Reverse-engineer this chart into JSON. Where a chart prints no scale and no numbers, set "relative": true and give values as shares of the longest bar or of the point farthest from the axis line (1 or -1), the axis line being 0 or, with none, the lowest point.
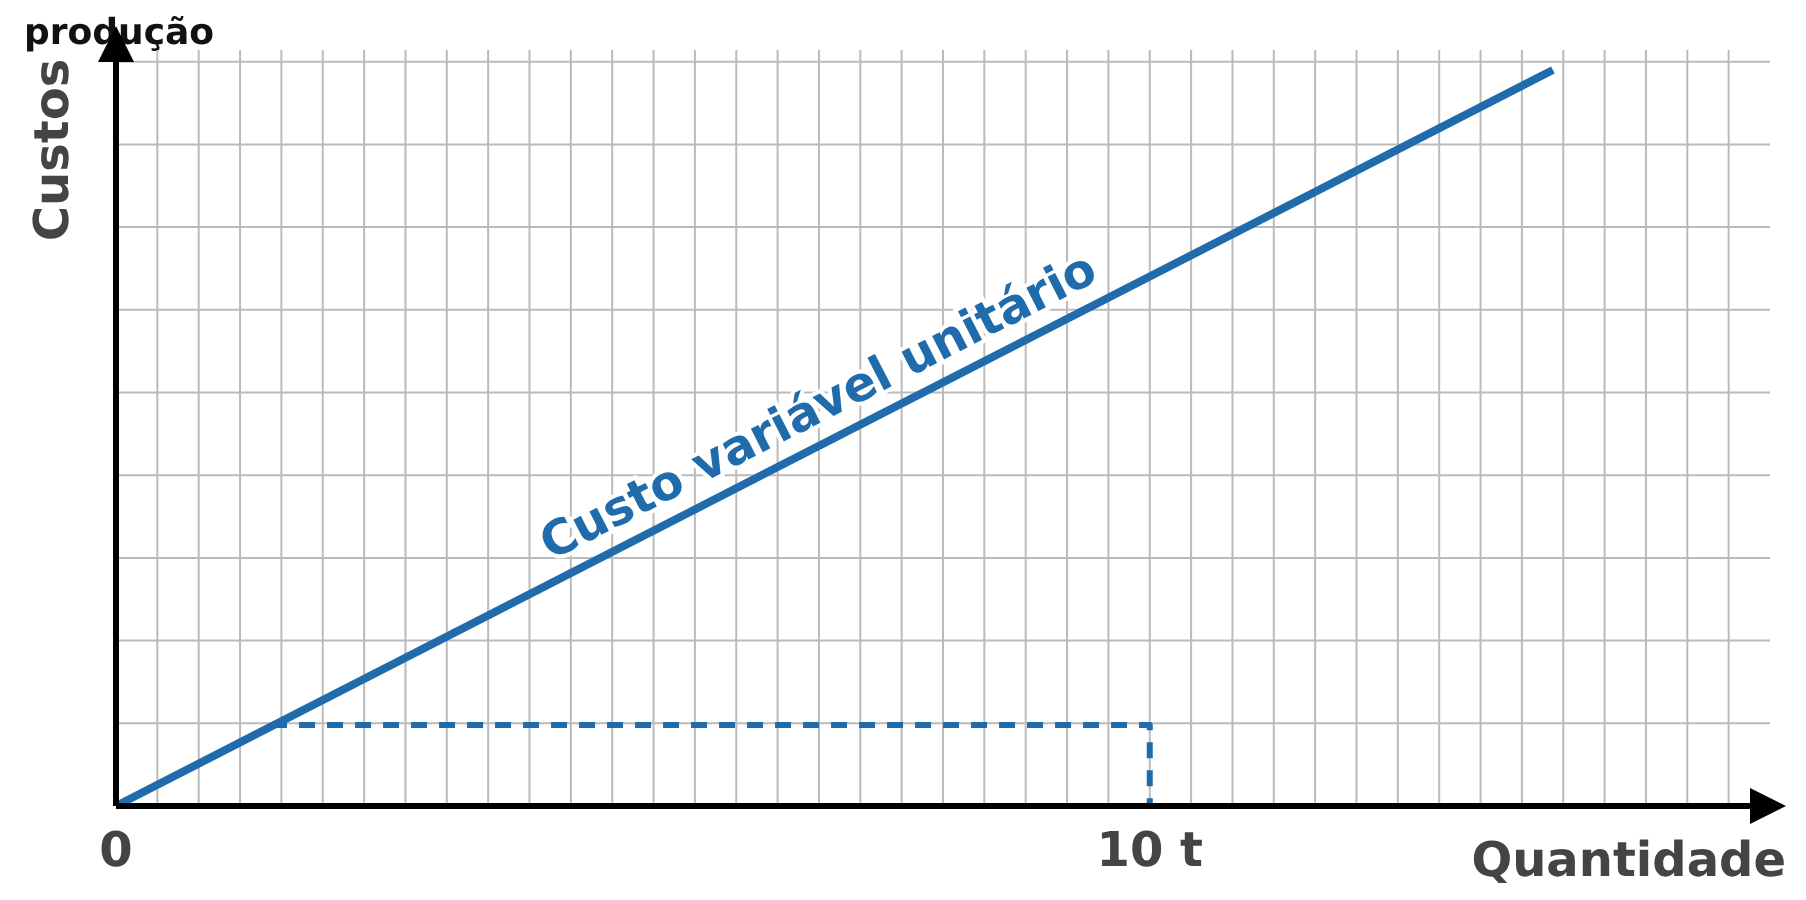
{
  "chart_data": {
    "type": "line",
    "title": "produção",
    "xlabel": "Quantidade",
    "ylabel": "Custos",
    "relative": true,
    "xlim": [
      0,
      16
    ],
    "xticks": [
      {
        "value": 0,
        "label": "0"
      },
      {
        "value": 0.4,
        "label": null
      },
      {
        "value": 0.8,
        "label": null
      },
      {
        "value": 1.2,
        "label": null
      },
      {
        "value": 1.6,
        "label": null
      },
      {
        "value": 2,
        "label": null
      },
      {
        "value": 2.4,
        "label": null
      },
      {
        "value": 2.8,
        "label": null
      },
      {
        "value": 3.2,
        "label": null
      },
      {
        "value": 3.6,
        "label": null
      },
      {
        "value": 4,
        "label": null
      },
      {
        "value": 4.4,
        "label": null
      },
      {
        "value": 4.8,
        "label": null
      },
      {
        "value": 5.2,
        "label": null
      },
      {
        "value": 5.6,
        "label": null
      },
      {
        "value": 6,
        "label": null
      },
      {
        "value": 6.4,
        "label": null
      },
      {
        "value": 6.8,
        "label": null
      },
      {
        "value": 7.2,
        "label": null
      },
      {
        "value": 7.6,
        "label": null
      },
      {
        "value": 8,
        "label": null
      },
      {
        "value": 8.4,
        "label": null
      },
      {
        "value": 8.8,
        "label": null
      },
      {
        "value": 9.2,
        "label": null
      },
      {
        "value": 9.6,
        "label": null
      },
      {
        "value": 10,
        "label": "10 t"
      },
      {
        "value": 10.4,
        "label": null
      },
      {
        "value": 10.8,
        "label": null
      },
      {
        "value": 11.2,
        "label": null
      },
      {
        "value": 11.6,
        "label": null
      },
      {
        "value": 12,
        "label": null
      },
      {
        "value": 12.4,
        "label": null
      },
      {
        "value": 12.8,
        "label": null
      },
      {
        "value": 13.2,
        "label": null
      },
      {
        "value": 13.6,
        "label": null
      },
      {
        "value": 14,
        "label": null
      },
      {
        "value": 14.4,
        "label": null
      },
      {
        "value": 14.8,
        "label": null
      },
      {
        "value": 15.2,
        "label": null
      },
      {
        "value": 15.6,
        "label": null
      }
    ],
    "grid": true,
    "marker": "none",
    "series": [
      {
        "name": "Custo variável unitário",
        "color": "#1f6bab",
        "x": [
          0,
          13.9
        ],
        "values": [
          0,
          1
        ],
        "line_style": "solid"
      },
      {
        "color": "#1f6bab",
        "x": [
          1.5,
          10,
          10
        ],
        "values": [
          0.11,
          0.11,
          0
        ],
        "line_style": "dashed"
      }
    ]
  }
}
